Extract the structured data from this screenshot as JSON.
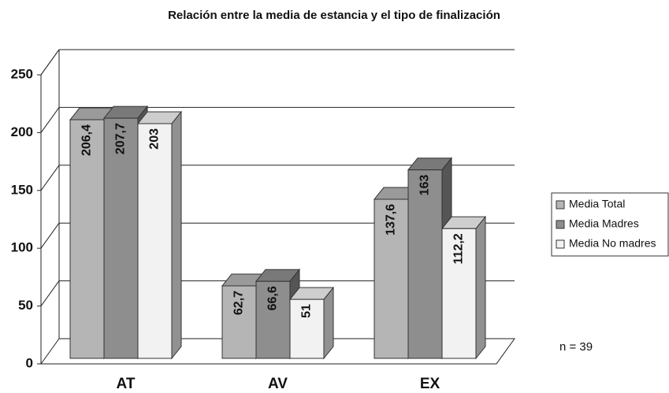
{
  "chart_data": {
    "type": "bar3d",
    "title": "Relación entre la media de estancia y el tipo de finalización",
    "categories": [
      "AT",
      "AV",
      "EX"
    ],
    "series": [
      {
        "name": "Media Total",
        "color": "#b5b5b5",
        "values": [
          206.4,
          62.7,
          137.6
        ],
        "value_labels": [
          "206,4",
          "62,7",
          "137,6"
        ]
      },
      {
        "name": "Media Madres",
        "color": "#8e8e8e",
        "values": [
          207.7,
          66.6,
          163
        ],
        "value_labels": [
          "207,7",
          "66,6",
          "163"
        ]
      },
      {
        "name": "Media No madres",
        "color": "#f2f2f2",
        "values": [
          203,
          51,
          112.2
        ],
        "value_labels": [
          "203",
          "51",
          "112,2"
        ]
      }
    ],
    "ylim": [
      0,
      250
    ],
    "yticks": [
      0,
      50,
      100,
      150,
      200,
      250
    ],
    "grid": true,
    "annotation": "n = 39",
    "legend": "right"
  }
}
